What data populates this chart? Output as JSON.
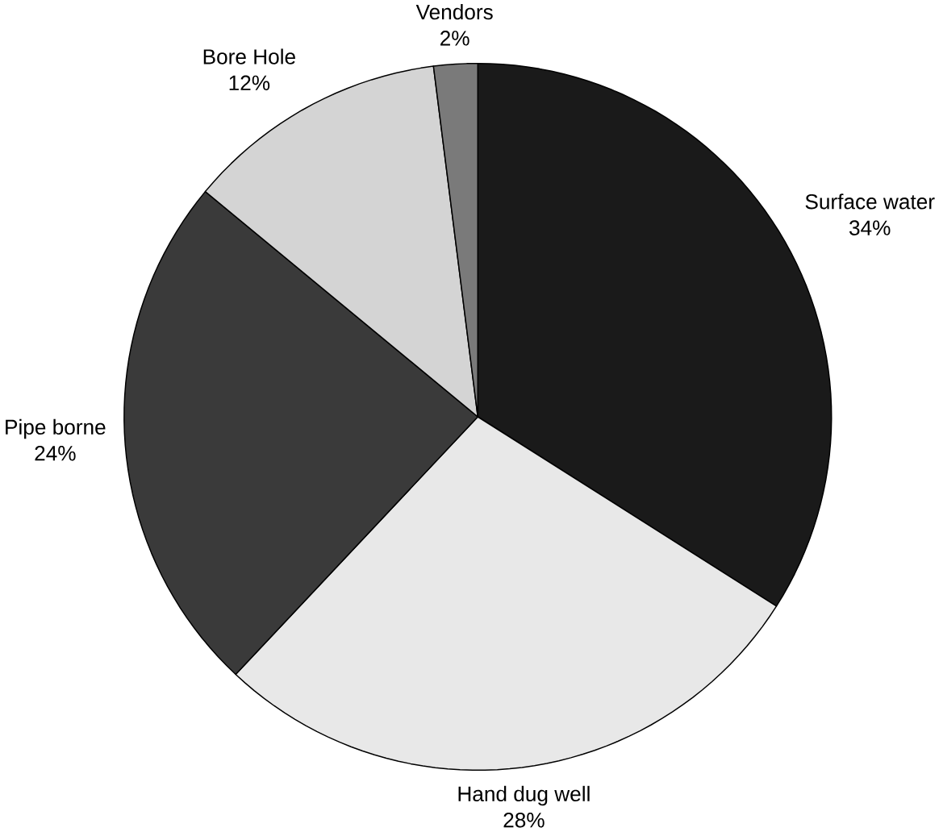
{
  "chart_data": {
    "type": "pie",
    "categories": [
      "Surface water",
      "Hand dug well",
      "Pipe borne",
      "Bore Hole",
      "Vendors"
    ],
    "values": [
      34,
      28,
      24,
      12,
      2
    ],
    "value_labels": [
      "34%",
      "28%",
      "24%",
      "12%",
      "2%"
    ],
    "colors": [
      "#1a1a1a",
      "#e8e8e8",
      "#3a3a3a",
      "#d4d4d4",
      "#7a7a7a"
    ]
  }
}
